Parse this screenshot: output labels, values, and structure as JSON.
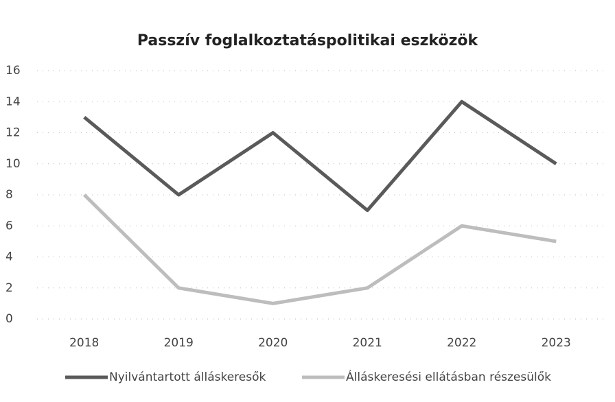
{
  "chart_data": {
    "type": "line",
    "title": "Passzív foglalkoztatáspolitikai eszközök",
    "categories": [
      "2018",
      "2019",
      "2020",
      "2021",
      "2022",
      "2023"
    ],
    "series": [
      {
        "name": "Nyilvántartott álláskeresők",
        "color": "#5a5a5a",
        "values": [
          13,
          8,
          12,
          7,
          14,
          10
        ]
      },
      {
        "name": "Álláskeresési ellátásban részesülők",
        "color": "#bdbdbd",
        "values": [
          8,
          2,
          1,
          2,
          6,
          5
        ]
      }
    ],
    "ylim": [
      0,
      16
    ],
    "yticks": [
      0,
      2,
      4,
      6,
      8,
      10,
      12,
      14,
      16
    ],
    "grid": true,
    "legend": "bottom"
  }
}
